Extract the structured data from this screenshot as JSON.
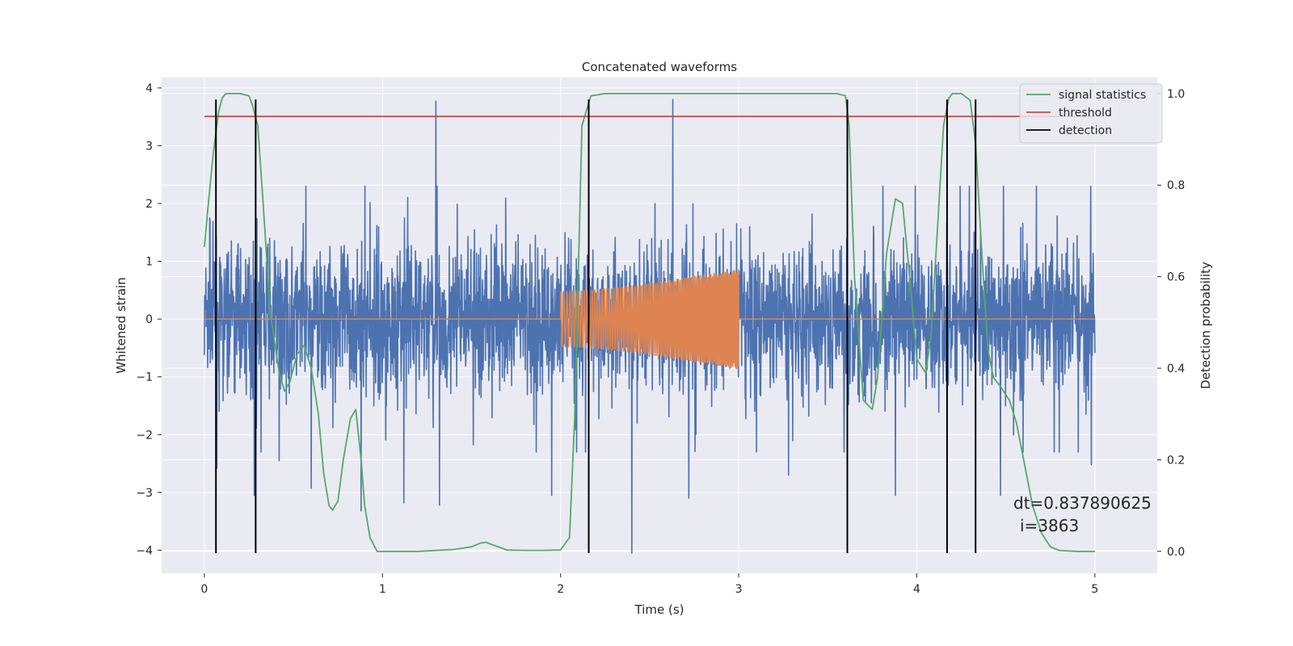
{
  "chart_data": {
    "type": "line",
    "title": "Concatenated waveforms",
    "xlabel": "Time (s)",
    "ylabel": "Whitened strain",
    "y2label": "Detection probability",
    "xlim": [
      -0.24,
      5.35
    ],
    "ylim": [
      -4.4,
      4.18
    ],
    "y2lim": [
      -0.048,
      1.035
    ],
    "xticks": [
      0,
      1,
      2,
      3,
      4,
      5
    ],
    "yticks": [
      -4,
      -3,
      -2,
      -1,
      0,
      1,
      2,
      3,
      4
    ],
    "y2ticks": [
      0.0,
      0.2,
      0.4,
      0.6,
      0.8,
      1.0
    ],
    "ytick_labels": [
      "−4",
      "−3",
      "−2",
      "−1",
      "0",
      "1",
      "2",
      "3",
      "4"
    ],
    "y2tick_labels": [
      "0.0",
      "0.2",
      "0.4",
      "0.6",
      "0.8",
      "1.0"
    ],
    "grid": true,
    "legend_position": "top-right",
    "legend": [
      "signal statistics",
      "threshold",
      "detection"
    ],
    "colors": {
      "noise": "#4c72b0",
      "injection": "#dd8452",
      "signal_statistics": "#55a868",
      "threshold": "#c44e52",
      "detection": "#000000",
      "axes_bg": "#eaeaf2",
      "grid": "#ffffff"
    },
    "series": [
      {
        "role": "whitened-strain",
        "x_range": [
          0,
          5
        ],
        "envelope_abs": 2.3,
        "extreme_peaks": [
          [
            0.03,
            1.75
          ],
          [
            0.07,
            -2.58
          ],
          [
            0.28,
            -3.05
          ],
          [
            0.42,
            -2.45
          ],
          [
            0.6,
            -2.93
          ],
          [
            0.88,
            -3.32
          ],
          [
            1.12,
            -3.18
          ],
          [
            1.3,
            3.77
          ],
          [
            1.32,
            -3.22
          ],
          [
            1.95,
            -3.05
          ],
          [
            2.4,
            -4.05
          ],
          [
            2.63,
            3.8
          ],
          [
            2.72,
            -3.1
          ],
          [
            3.28,
            -2.7
          ],
          [
            3.88,
            -3.05
          ],
          [
            4.47,
            -3.05
          ],
          [
            4.98,
            -2.52
          ]
        ]
      },
      {
        "role": "injected-signal",
        "x": [
          0,
          2.0,
          2.0,
          2.25,
          2.5,
          2.75,
          3.0,
          3.0,
          5.0
        ],
        "amplitude": [
          0,
          0,
          0.5,
          0.55,
          0.65,
          0.78,
          0.9,
          0,
          0
        ]
      },
      {
        "name": "signal statistics",
        "axis": "right",
        "x": [
          0,
          0.02,
          0.05,
          0.08,
          0.1,
          0.12,
          0.15,
          0.2,
          0.25,
          0.27,
          0.3,
          0.33,
          0.37,
          0.42,
          0.45,
          0.48,
          0.52,
          0.56,
          0.6,
          0.64,
          0.67,
          0.7,
          0.72,
          0.75,
          0.78,
          0.82,
          0.85,
          0.88,
          0.9,
          0.93,
          0.97,
          1.0,
          1.2,
          1.4,
          1.5,
          1.55,
          1.58,
          1.62,
          1.7,
          1.8,
          1.9,
          2.0,
          2.05,
          2.08,
          2.12,
          2.17,
          2.25,
          2.5,
          3.0,
          3.4,
          3.55,
          3.6,
          3.62,
          3.65,
          3.7,
          3.75,
          3.78,
          3.83,
          3.88,
          3.92,
          3.96,
          4.0,
          4.05,
          4.08,
          4.12,
          4.15,
          4.18,
          4.2,
          4.25,
          4.3,
          4.33,
          4.37,
          4.4,
          4.43,
          4.47,
          4.52,
          4.56,
          4.6,
          4.65,
          4.7,
          4.75,
          4.8,
          4.9,
          5.0
        ],
        "values": [
          0.665,
          0.75,
          0.87,
          0.96,
          0.99,
          1.0,
          1.0,
          1.0,
          0.995,
          0.975,
          0.93,
          0.76,
          0.52,
          0.39,
          0.35,
          0.37,
          0.43,
          0.45,
          0.4,
          0.3,
          0.17,
          0.1,
          0.09,
          0.11,
          0.2,
          0.29,
          0.31,
          0.2,
          0.1,
          0.03,
          0.0,
          0.0,
          0.0,
          0.004,
          0.01,
          0.018,
          0.02,
          0.014,
          0.003,
          0.002,
          0.002,
          0.003,
          0.03,
          0.3,
          0.93,
          0.995,
          1.0,
          1.0,
          1.0,
          1.0,
          1.0,
          0.995,
          0.93,
          0.6,
          0.33,
          0.31,
          0.38,
          0.65,
          0.77,
          0.76,
          0.6,
          0.42,
          0.39,
          0.47,
          0.73,
          0.93,
          0.99,
          1.0,
          1.0,
          0.985,
          0.89,
          0.62,
          0.44,
          0.38,
          0.36,
          0.33,
          0.28,
          0.2,
          0.1,
          0.04,
          0.01,
          0.002,
          0.0,
          0.0
        ]
      },
      {
        "name": "threshold",
        "axis": "right",
        "x": [
          0,
          5
        ],
        "values": [
          0.95,
          0.95
        ]
      }
    ],
    "detections": [
      0.065,
      0.288,
      2.158,
      3.61,
      4.17,
      4.33
    ],
    "detection_ylim": [
      -4.05,
      3.8
    ]
  },
  "annotation": {
    "line1": "dt=0.837890625",
    "line2": "i=3863"
  }
}
